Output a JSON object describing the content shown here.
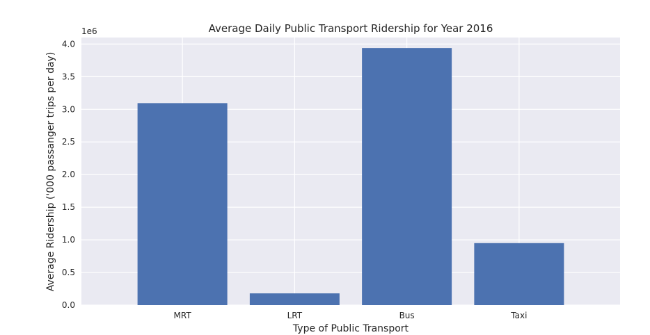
{
  "chart_data": {
    "type": "bar",
    "title": "Average Daily Public Transport Ridership for Year 2016",
    "xlabel": "Type of Public Transport",
    "ylabel": "Average Ridership ('000 passanger trips per day)",
    "categories": [
      "MRT",
      "LRT",
      "Bus",
      "Taxi"
    ],
    "values": [
      3095000,
      180000,
      3939000,
      950000
    ],
    "ylim": [
      0,
      4100000
    ],
    "y_ticks": [
      0,
      500000,
      1000000,
      1500000,
      2000000,
      2500000,
      3000000,
      3500000,
      4000000
    ],
    "y_tick_labels": [
      "0.0",
      "0.5",
      "1.0",
      "1.5",
      "2.0",
      "2.5",
      "3.0",
      "3.5",
      "4.0"
    ],
    "y_offset_label": "1e6",
    "grid": true,
    "colors": {
      "bar": "#4c72b0",
      "plot_background": "#eaeaf2",
      "grid": "#ffffff"
    }
  }
}
